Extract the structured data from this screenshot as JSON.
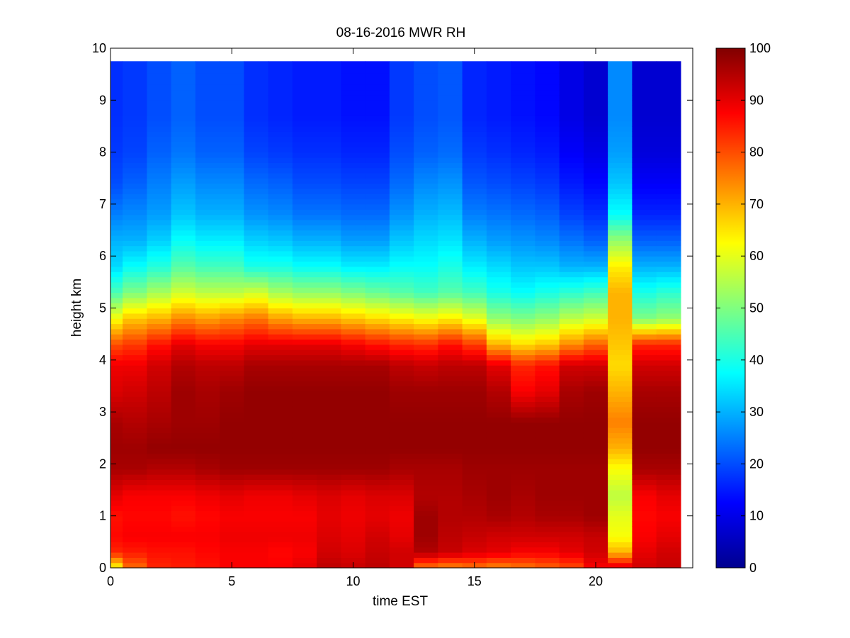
{
  "chart_data": {
    "type": "heatmap",
    "title": "08-16-2016 MWR RH",
    "xlabel": "time EST",
    "ylabel": "height km",
    "xlim": [
      0,
      24
    ],
    "ylim": [
      0,
      10
    ],
    "xticks": [
      0,
      5,
      10,
      15,
      20
    ],
    "yticks": [
      0,
      1,
      2,
      3,
      4,
      5,
      6,
      7,
      8,
      9,
      10
    ],
    "colormap": "jet",
    "clim": [
      0,
      100
    ],
    "colorbar_ticks": [
      0,
      10,
      20,
      30,
      40,
      50,
      60,
      70,
      80,
      90,
      100
    ],
    "background_color": "#ffffff",
    "x": [
      0,
      1,
      2,
      3,
      4,
      5,
      6,
      7,
      8,
      9,
      10,
      11,
      12,
      13,
      14,
      15,
      16,
      17,
      18,
      19,
      20,
      21,
      22,
      23
    ],
    "y_levels": [
      0,
      0.3,
      0.6,
      1.0,
      1.4,
      1.9,
      2.3,
      2.8,
      3.4,
      3.9,
      4.3,
      4.8,
      5.3,
      5.8,
      6.3,
      6.8,
      7.4,
      8.0,
      8.7,
      9.3,
      9.75
    ],
    "values_by_time": [
      [
        62,
        84,
        87,
        86,
        90,
        96,
        97,
        96,
        91,
        89,
        80,
        62,
        45,
        34,
        30,
        25,
        20,
        18,
        17,
        17,
        17
      ],
      [
        77,
        85,
        88,
        87,
        88,
        96,
        97,
        95,
        92,
        89,
        82,
        68,
        50,
        38,
        30,
        26,
        22,
        19,
        18,
        18,
        18
      ],
      [
        84,
        86,
        88,
        87,
        88,
        95,
        98,
        96,
        94,
        92,
        86,
        70,
        54,
        41,
        33,
        28,
        25,
        22,
        20,
        20,
        20
      ],
      [
        85,
        86,
        88,
        86,
        88,
        95,
        98,
        97,
        97,
        95,
        90,
        74,
        58,
        46,
        38,
        32,
        28,
        24,
        22,
        22,
        22
      ],
      [
        86,
        87,
        88,
        87,
        89,
        96,
        98,
        97,
        96,
        94,
        88,
        72,
        56,
        44,
        36,
        30,
        26,
        22,
        20,
        20,
        20
      ],
      [
        88,
        88,
        89,
        88,
        90,
        97,
        98,
        98,
        97,
        94,
        88,
        74,
        56,
        44,
        36,
        30,
        26,
        22,
        20,
        20,
        20
      ],
      [
        88,
        88,
        89,
        88,
        89,
        97,
        98,
        98,
        98,
        96,
        90,
        76,
        58,
        40,
        33,
        27,
        23,
        19,
        17,
        17,
        17
      ],
      [
        88,
        87,
        89,
        88,
        89,
        97,
        98,
        98,
        98,
        96,
        90,
        72,
        54,
        40,
        32,
        26,
        22,
        18,
        16,
        16,
        16
      ],
      [
        90,
        88,
        89,
        88,
        90,
        97,
        98,
        98,
        98,
        96,
        90,
        70,
        52,
        38,
        30,
        24,
        20,
        17,
        15,
        15,
        15
      ],
      [
        94,
        92,
        91,
        90,
        91,
        97,
        98,
        98,
        98,
        96,
        90,
        70,
        52,
        38,
        30,
        24,
        20,
        17,
        15,
        15,
        15
      ],
      [
        93,
        91,
        90,
        89,
        90,
        97,
        98,
        98,
        98,
        96,
        88,
        68,
        50,
        36,
        28,
        23,
        19,
        16,
        14,
        14,
        14
      ],
      [
        94,
        93,
        92,
        90,
        91,
        97,
        98,
        98,
        98,
        96,
        86,
        66,
        48,
        36,
        28,
        23,
        19,
        16,
        14,
        14,
        14
      ],
      [
        92,
        92,
        90,
        89,
        91,
        96,
        98,
        98,
        97,
        94,
        84,
        64,
        46,
        38,
        32,
        27,
        23,
        20,
        18,
        18,
        18
      ],
      [
        76,
        95,
        97,
        97,
        95,
        96,
        98,
        98,
        97,
        93,
        83,
        62,
        44,
        38,
        34,
        30,
        26,
        22,
        20,
        20,
        20
      ],
      [
        74,
        93,
        94,
        95,
        95,
        96,
        98,
        98,
        97,
        94,
        86,
        64,
        46,
        40,
        35,
        31,
        27,
        23,
        21,
        21,
        21
      ],
      [
        76,
        91,
        93,
        95,
        96,
        97,
        98,
        98,
        97,
        94,
        82,
        60,
        44,
        36,
        30,
        25,
        21,
        18,
        16,
        16,
        16
      ],
      [
        74,
        90,
        92,
        96,
        97,
        97,
        98,
        98,
        95,
        90,
        70,
        52,
        40,
        34,
        28,
        24,
        20,
        17,
        15,
        15,
        15
      ],
      [
        76,
        88,
        92,
        95,
        96,
        97,
        98,
        98,
        88,
        84,
        66,
        50,
        38,
        32,
        27,
        23,
        19,
        16,
        14,
        14,
        14
      ],
      [
        78,
        88,
        92,
        96,
        97,
        97,
        98,
        98,
        90,
        86,
        68,
        52,
        40,
        32,
        26,
        22,
        18,
        15,
        13,
        13,
        13
      ],
      [
        80,
        90,
        92,
        96,
        97,
        97,
        98,
        98,
        96,
        92,
        74,
        56,
        42,
        30,
        24,
        19,
        15,
        12,
        10,
        10,
        10
      ],
      [
        88,
        92,
        93,
        97,
        97,
        97,
        98,
        98,
        97,
        92,
        78,
        58,
        44,
        30,
        22,
        17,
        13,
        10,
        8,
        8,
        8
      ],
      [
        92,
        70,
        62,
        60,
        56,
        62,
        70,
        75,
        70,
        66,
        68,
        70,
        70,
        64,
        52,
        38,
        32,
        28,
        26,
        26,
        26
      ],
      [
        92,
        90,
        88,
        87,
        88,
        96,
        98,
        98,
        96,
        92,
        84,
        50,
        40,
        30,
        22,
        16,
        12,
        9,
        8,
        8,
        8
      ],
      [
        93,
        92,
        90,
        88,
        90,
        96,
        98,
        98,
        96,
        92,
        84,
        52,
        42,
        30,
        22,
        16,
        12,
        9,
        8,
        8,
        8
      ]
    ]
  }
}
